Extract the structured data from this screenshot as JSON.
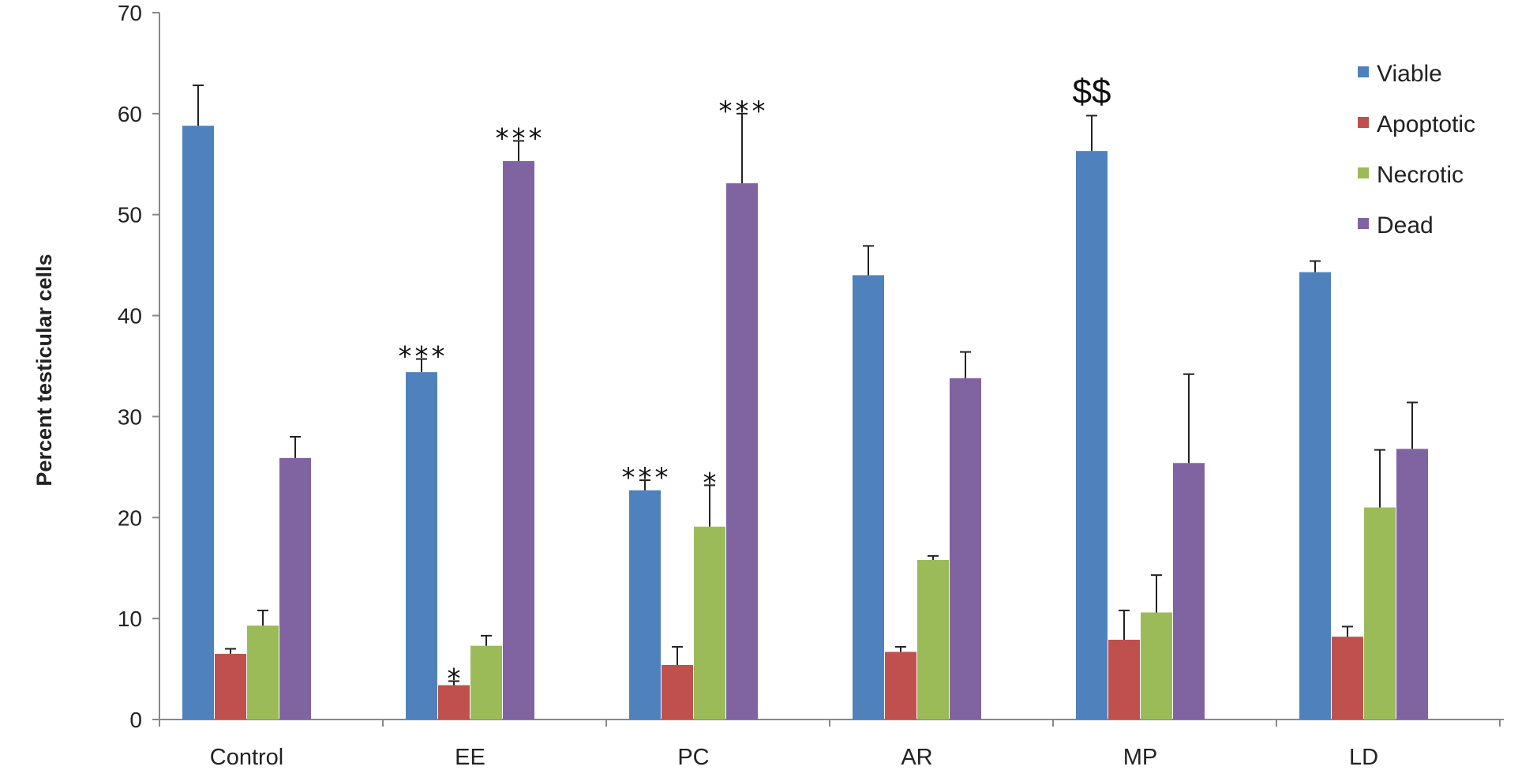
{
  "chart_data": {
    "type": "bar",
    "ylabel": "Percent testicular cells",
    "xlabel": "",
    "ylim": [
      0,
      70
    ],
    "yticks": [
      0,
      10,
      20,
      30,
      40,
      50,
      60,
      70
    ],
    "grid": false,
    "legend_position": "top-right",
    "categories": [
      "Control",
      "EE",
      "PC",
      "AR",
      "MP",
      "LD"
    ],
    "series": [
      {
        "name": "Viable",
        "color": "#4f81bd",
        "values": [
          58.8,
          34.4,
          22.7,
          44.0,
          56.3,
          44.3
        ],
        "errors": [
          4.0,
          1.3,
          1.0,
          2.9,
          3.5,
          1.1
        ]
      },
      {
        "name": "Apoptotic",
        "color": "#c0504d",
        "values": [
          6.5,
          3.4,
          5.4,
          6.7,
          7.9,
          8.2
        ],
        "errors": [
          0.5,
          0.4,
          1.8,
          0.5,
          2.9,
          1.0
        ]
      },
      {
        "name": "Necrotic",
        "color": "#9bbb59",
        "values": [
          9.3,
          7.3,
          19.1,
          15.8,
          10.6,
          21.0
        ],
        "errors": [
          1.5,
          1.0,
          4.1,
          0.4,
          3.7,
          5.7
        ]
      },
      {
        "name": "Dead",
        "color": "#8064a2",
        "values": [
          25.9,
          55.3,
          53.1,
          33.8,
          25.4,
          26.8
        ],
        "errors": [
          2.1,
          2.0,
          6.9,
          2.6,
          8.8,
          4.6
        ]
      }
    ],
    "annotations": [
      {
        "category": "EE",
        "series": "Viable",
        "text": "***"
      },
      {
        "category": "EE",
        "series": "Apoptotic",
        "text": "*"
      },
      {
        "category": "EE",
        "series": "Dead",
        "text": "***"
      },
      {
        "category": "PC",
        "series": "Viable",
        "text": "***"
      },
      {
        "category": "PC",
        "series": "Necrotic",
        "text": "*"
      },
      {
        "category": "PC",
        "series": "Dead",
        "text": "***"
      },
      {
        "category": "MP",
        "series": "Viable",
        "text": "$$"
      }
    ]
  }
}
